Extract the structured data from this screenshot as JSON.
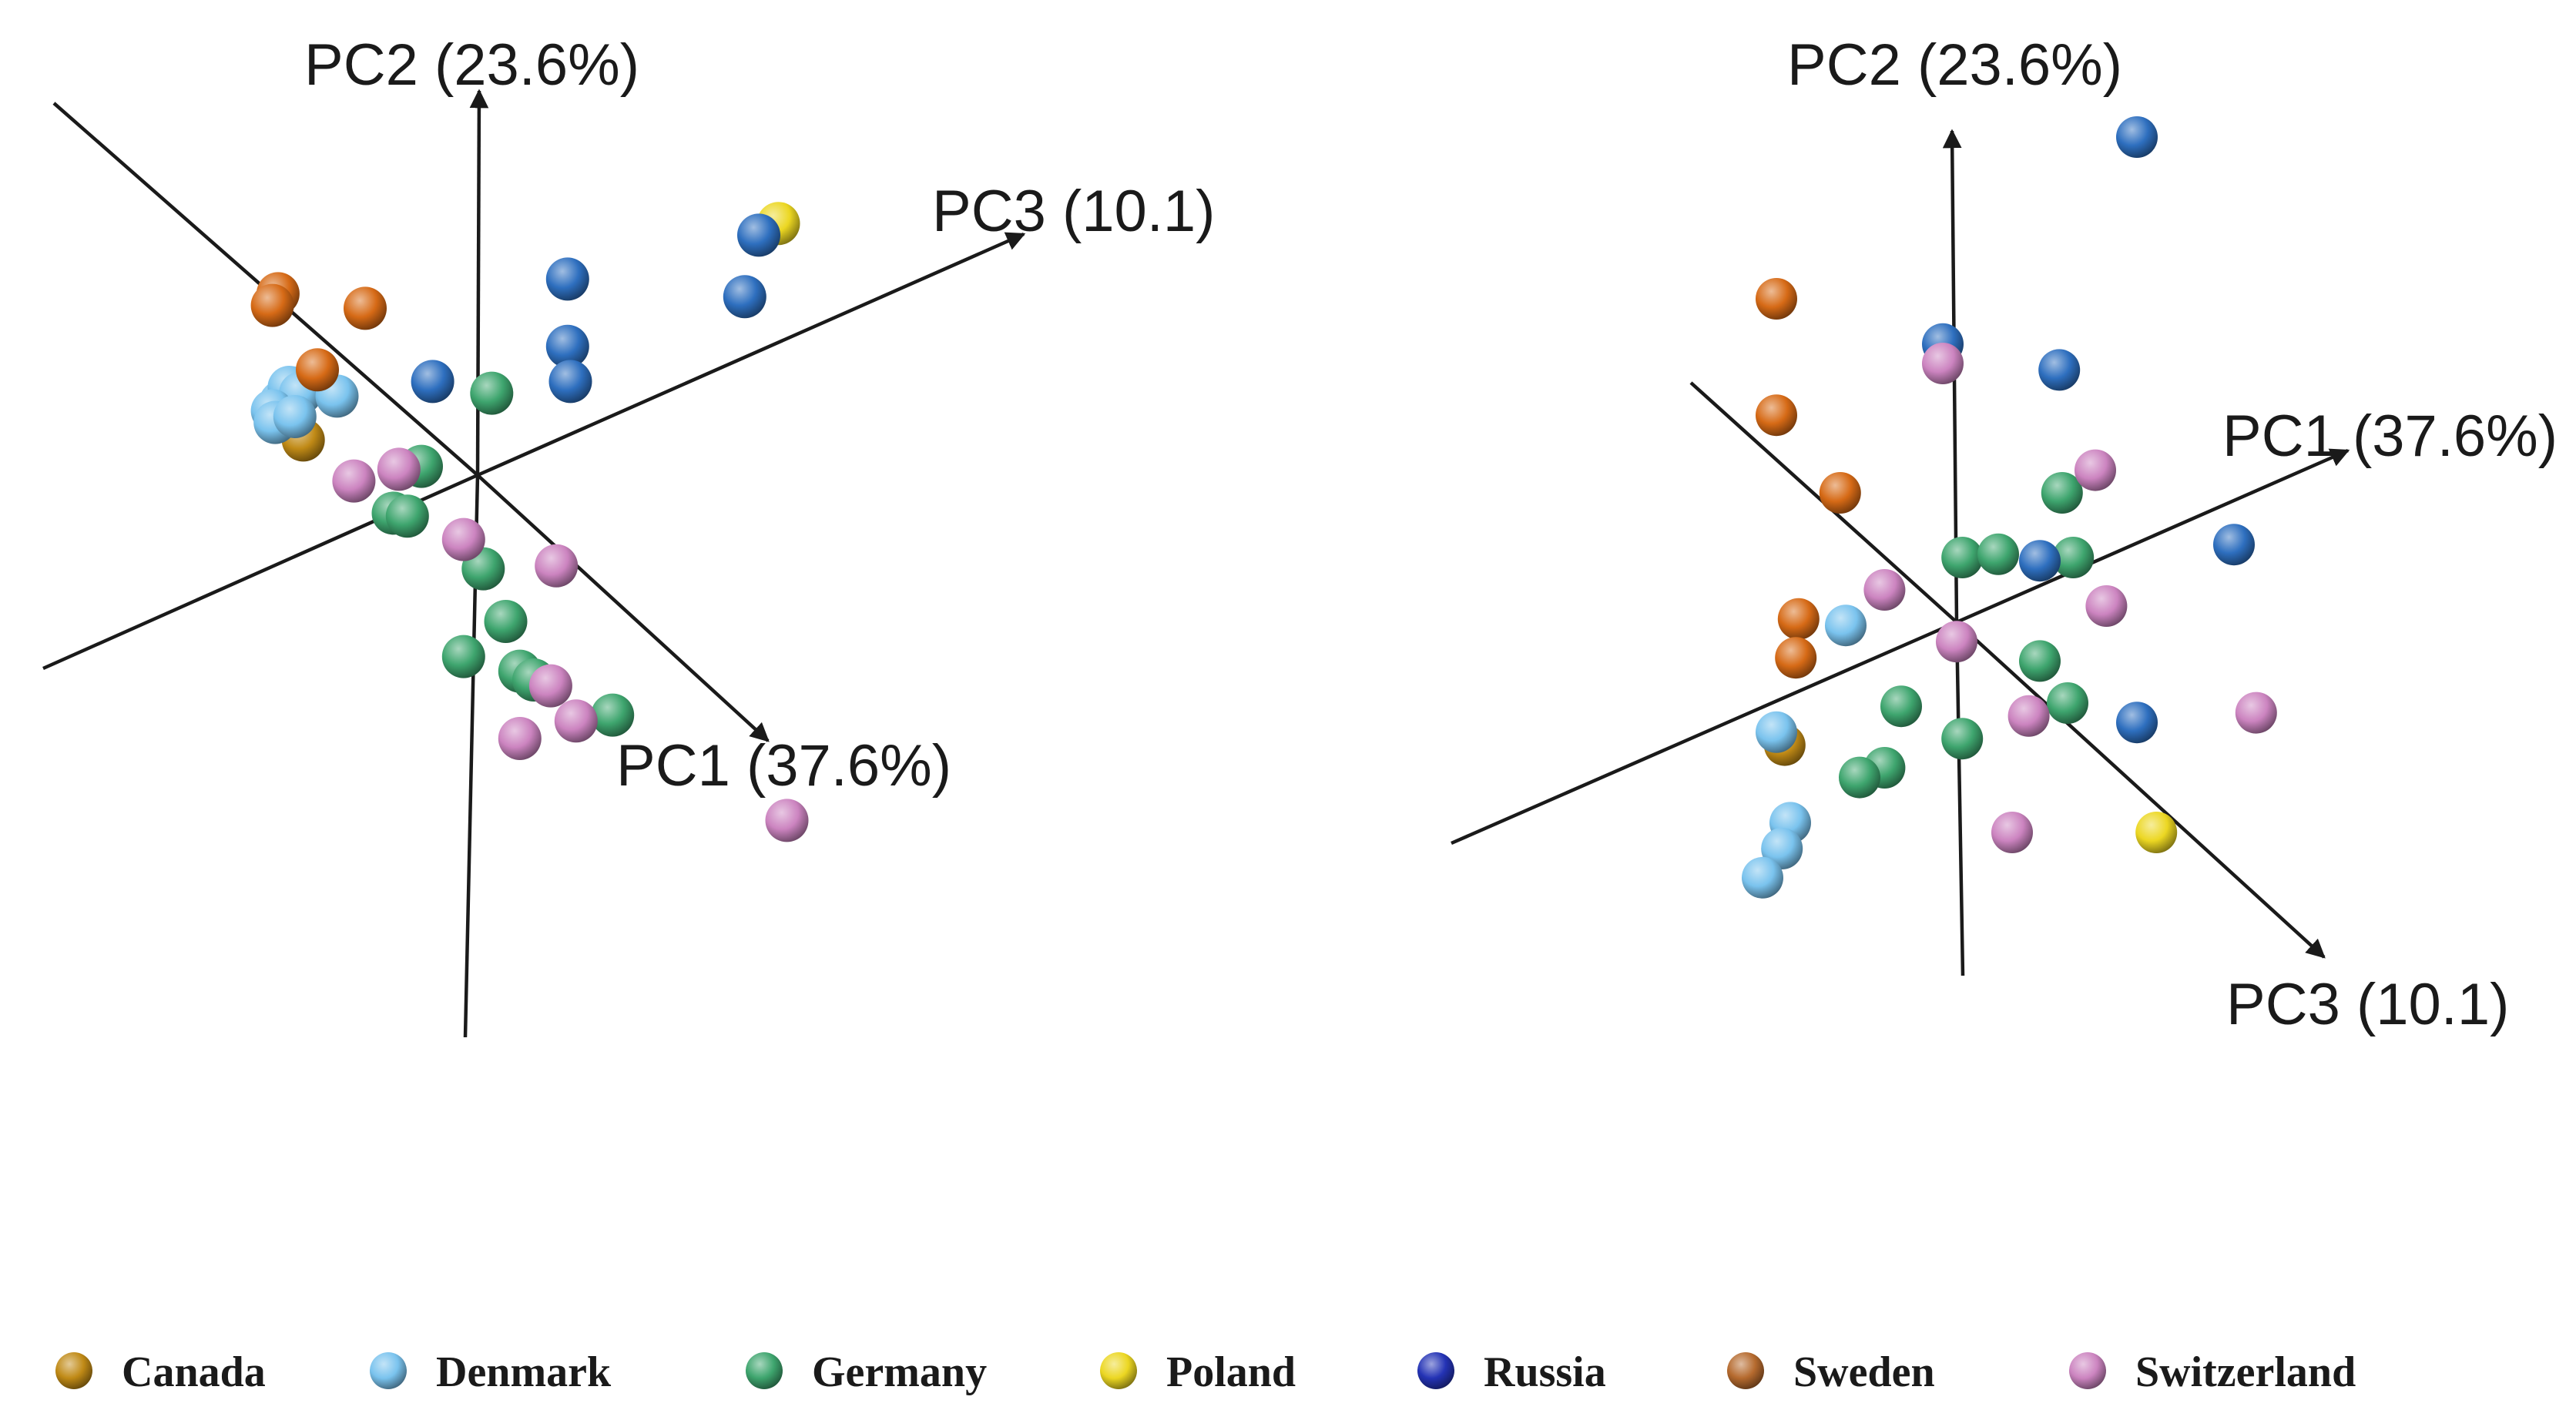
{
  "chart_data": [
    {
      "type": "scatter",
      "title": "",
      "panel": "left",
      "axes": [
        {
          "name": "PC1",
          "label": "PC1 (37.6%)"
        },
        {
          "name": "PC2",
          "label": "PC2 (23.6%)"
        },
        {
          "name": "PC3",
          "label": "PC3 (10.1)"
        }
      ],
      "series": [
        {
          "name": "Canada",
          "points": [
            [
              -0.62,
              0.12
            ]
          ]
        },
        {
          "name": "Denmark",
          "points": [
            [
              -0.7,
              0.25
            ],
            [
              -0.67,
              0.3
            ],
            [
              -0.63,
              0.28
            ],
            [
              -0.73,
              0.22
            ],
            [
              -0.72,
              0.18
            ],
            [
              -0.65,
              0.2
            ],
            [
              -0.5,
              0.27
            ]
          ]
        },
        {
          "name": "Germany",
          "points": [
            [
              0.05,
              0.28
            ],
            [
              -0.2,
              0.03
            ],
            [
              -0.3,
              -0.13
            ],
            [
              -0.25,
              -0.14
            ],
            [
              0.02,
              -0.32
            ],
            [
              0.1,
              -0.5
            ],
            [
              -0.05,
              -0.62
            ],
            [
              0.15,
              -0.67
            ],
            [
              0.2,
              -0.7
            ],
            [
              0.48,
              -0.82
            ]
          ]
        },
        {
          "name": "Poland",
          "points": [
            [
              1.07,
              0.86
            ]
          ]
        },
        {
          "name": "Russia",
          "points": [
            [
              0.32,
              0.67
            ],
            [
              0.32,
              0.44
            ],
            [
              0.33,
              0.32
            ],
            [
              -0.16,
              0.32
            ],
            [
              0.95,
              0.61
            ],
            [
              1.0,
              0.82
            ]
          ]
        },
        {
          "name": "Sweden",
          "points": [
            [
              -0.71,
              0.62
            ],
            [
              -0.73,
              0.58
            ],
            [
              -0.4,
              0.57
            ],
            [
              -0.57,
              0.36
            ]
          ]
        },
        {
          "name": "Switzerland",
          "points": [
            [
              -0.44,
              -0.02
            ],
            [
              -0.28,
              0.02
            ],
            [
              -0.05,
              -0.22
            ],
            [
              0.28,
              -0.31
            ],
            [
              0.26,
              -0.72
            ],
            [
              0.15,
              -0.9
            ],
            [
              0.35,
              -0.84
            ],
            [
              1.1,
              -1.18
            ]
          ]
        }
      ]
    },
    {
      "type": "scatter",
      "title": "",
      "panel": "right",
      "axes": [
        {
          "name": "PC1",
          "label": "PC1 (37.6%)"
        },
        {
          "name": "PC2",
          "label": "PC2 (23.6%)"
        },
        {
          "name": "PC3",
          "label": "PC3 (10.1)"
        }
      ],
      "series": [
        {
          "name": "Canada",
          "points": [
            [
              -0.62,
              -0.38
            ]
          ]
        },
        {
          "name": "Denmark",
          "points": [
            [
              -0.4,
              -0.01
            ],
            [
              -0.65,
              -0.34
            ],
            [
              -0.6,
              -0.62
            ],
            [
              -0.63,
              -0.7
            ],
            [
              -0.7,
              -0.79
            ]
          ]
        },
        {
          "name": "Germany",
          "points": [
            [
              0.02,
              0.2
            ],
            [
              0.15,
              0.21
            ],
            [
              0.38,
              0.4
            ],
            [
              0.42,
              0.2
            ],
            [
              0.3,
              -0.12
            ],
            [
              0.4,
              -0.25
            ],
            [
              -0.2,
              -0.26
            ],
            [
              0.02,
              -0.36
            ],
            [
              -0.26,
              -0.45
            ],
            [
              -0.35,
              -0.48
            ]
          ]
        },
        {
          "name": "Poland",
          "points": [
            [
              0.72,
              -0.65
            ]
          ]
        },
        {
          "name": "Russia",
          "points": [
            [
              -0.05,
              0.86
            ],
            [
              0.37,
              0.78
            ],
            [
              0.3,
              0.19
            ],
            [
              1.0,
              0.24
            ],
            [
              0.65,
              -0.31
            ],
            [
              0.65,
              1.5
            ]
          ]
        },
        {
          "name": "Sweden",
          "points": [
            [
              -0.65,
              1.0
            ],
            [
              -0.65,
              0.64
            ],
            [
              -0.42,
              0.4
            ],
            [
              -0.57,
              0.01
            ],
            [
              -0.58,
              -0.11
            ]
          ]
        },
        {
          "name": "Switzerland",
          "points": [
            [
              -0.26,
              0.1
            ],
            [
              0.5,
              0.47
            ],
            [
              0.54,
              0.05
            ],
            [
              0.0,
              -0.06
            ],
            [
              0.26,
              -0.29
            ],
            [
              -0.05,
              0.8
            ],
            [
              1.08,
              -0.28
            ],
            [
              0.2,
              -0.65
            ]
          ]
        }
      ]
    }
  ],
  "legend": {
    "position": "bottom",
    "items": [
      {
        "label": "Canada",
        "color": "#c08a16"
      },
      {
        "label": "Denmark",
        "color": "#7ac3ee"
      },
      {
        "label": "Germany",
        "color": "#3ea56e"
      },
      {
        "label": "Poland",
        "color": "#ecd722"
      },
      {
        "label": "Russia",
        "color": "#2e6fbf"
      },
      {
        "label": "Sweden",
        "color": "#d66a16"
      },
      {
        "label": "Switzerland",
        "color": "#cc84c0"
      }
    ],
    "legend_marker_colors": {
      "Russia": "#2433b5",
      "Sweden": "#b56a2e"
    }
  }
}
